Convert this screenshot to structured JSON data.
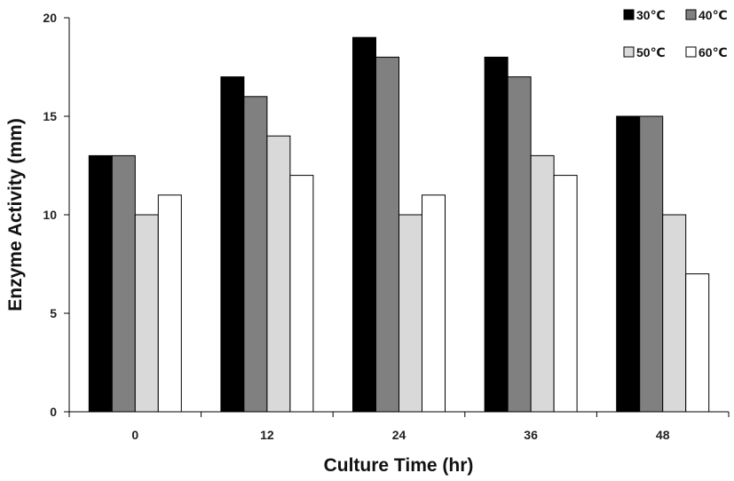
{
  "chart_data": {
    "type": "bar",
    "categories": [
      "0",
      "12",
      "24",
      "36",
      "48"
    ],
    "series": [
      {
        "name": "30℃",
        "values": [
          13,
          17,
          19,
          18,
          15
        ],
        "color": "#000000"
      },
      {
        "name": "40℃",
        "values": [
          13,
          16,
          18,
          17,
          15
        ],
        "color": "#808080"
      },
      {
        "name": "50℃",
        "values": [
          10,
          14,
          10,
          13,
          10
        ],
        "color": "#d9d9d9"
      },
      {
        "name": "60℃",
        "values": [
          11,
          12,
          11,
          12,
          7
        ],
        "color": "#ffffff"
      }
    ],
    "xlabel": "Culture Time (hr)",
    "ylabel": "Enzyme Activity (mm)",
    "ylim": [
      0,
      20
    ],
    "yticks": [
      0,
      5,
      10,
      15,
      20
    ],
    "grid": false,
    "legend_position": "top-right"
  }
}
